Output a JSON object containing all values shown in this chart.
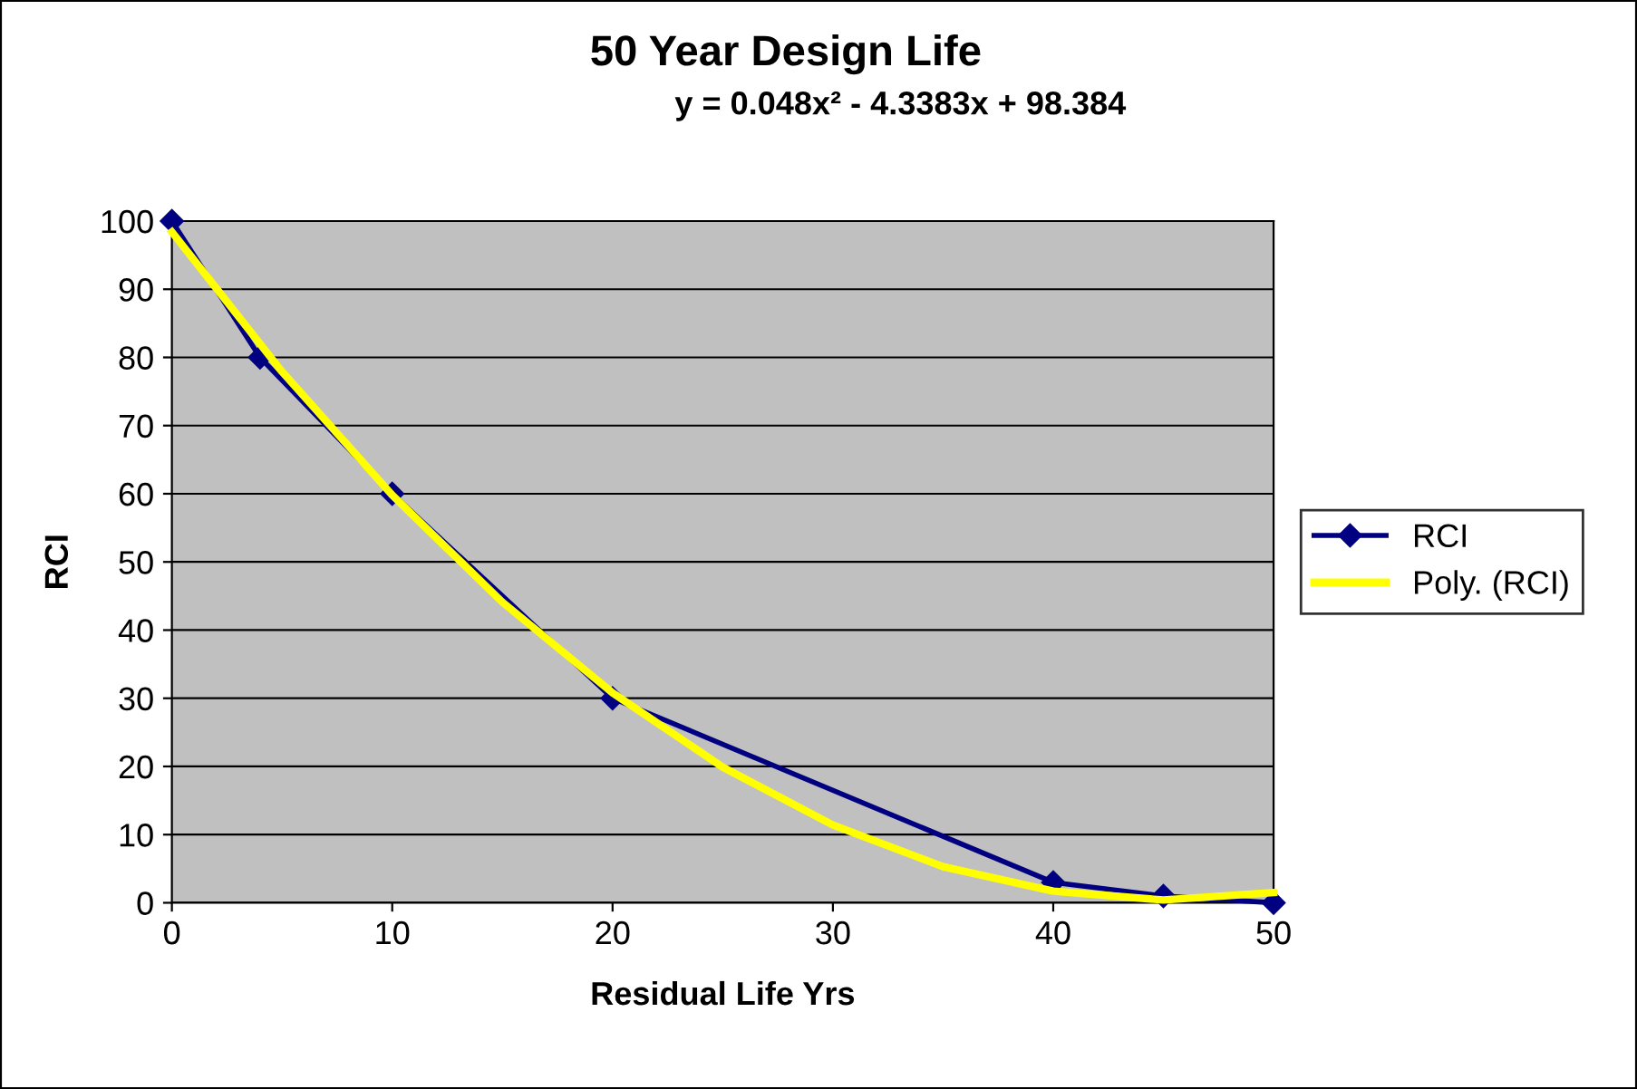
{
  "chart_data": {
    "type": "line",
    "title": "50 Year Design Life",
    "subtitle": "y = 0.048x² - 4.3383x + 98.384",
    "xlabel": "Residual Life Yrs",
    "ylabel": "RCI",
    "xlim": [
      0,
      50
    ],
    "xticks": [
      0,
      10,
      20,
      30,
      40,
      50
    ],
    "ylim": [
      0,
      100
    ],
    "yticks": [
      0,
      10,
      20,
      30,
      40,
      50,
      60,
      70,
      80,
      90,
      100
    ],
    "grid": "y",
    "legend": "right",
    "series": [
      {
        "name": "RCI",
        "color": "#000080",
        "marker": "diamond",
        "x": [
          0,
          4,
          10,
          20,
          40,
          45,
          50
        ],
        "values": [
          100,
          80,
          60,
          30,
          3,
          1,
          0
        ]
      },
      {
        "name": "Poly. (RCI)",
        "color": "#ffff00",
        "marker": "none",
        "x": [
          0,
          5,
          10,
          15,
          20,
          25,
          30,
          35,
          40,
          45,
          50
        ],
        "values": [
          98.4,
          77.9,
          59.8,
          44.1,
          30.8,
          19.9,
          11.4,
          5.3,
          1.7,
          0.4,
          1.5
        ]
      }
    ]
  }
}
